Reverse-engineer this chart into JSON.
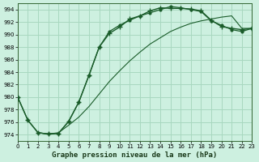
{
  "title": "Graphe pression niveau de la mer (hPa)",
  "background_color": "#cdf0e0",
  "grid_color": "#a8d8c0",
  "line_color": "#1a5c2a",
  "xlim": [
    0,
    23
  ],
  "ylim": [
    973,
    995
  ],
  "yticks": [
    974,
    976,
    978,
    980,
    982,
    984,
    986,
    988,
    990,
    992,
    994
  ],
  "xticks": [
    0,
    1,
    2,
    3,
    4,
    5,
    6,
    7,
    8,
    9,
    10,
    11,
    12,
    13,
    14,
    15,
    16,
    17,
    18,
    19,
    20,
    21,
    22,
    23
  ],
  "series1_x": [
    0,
    1,
    2,
    3,
    4,
    5,
    6,
    7,
    8,
    9,
    10,
    11,
    12,
    13,
    14,
    15,
    16,
    17,
    18,
    19,
    20,
    21,
    22,
    23
  ],
  "series1_y": [
    980.0,
    976.3,
    974.3,
    974.1,
    974.2,
    976.1,
    979.2,
    983.5,
    988.0,
    990.2,
    991.2,
    992.5,
    993.0,
    993.8,
    994.3,
    994.2,
    994.2,
    994.1,
    993.8,
    992.3,
    991.3,
    991.0,
    990.8,
    991.0
  ],
  "series2_x": [
    2,
    3,
    4,
    5,
    6,
    7,
    8,
    9,
    10,
    11,
    12,
    13,
    14,
    15,
    16,
    17,
    18,
    19,
    20,
    21,
    22,
    23
  ],
  "series2_y": [
    974.3,
    974.1,
    974.3,
    975.5,
    976.8,
    978.5,
    980.5,
    982.5,
    984.2,
    985.8,
    987.2,
    988.5,
    989.5,
    990.5,
    991.2,
    991.8,
    992.2,
    992.5,
    992.8,
    993.0,
    991.0,
    991.0
  ],
  "series3_x": [
    0,
    1,
    2,
    3,
    4,
    5,
    6,
    7,
    8,
    9,
    10,
    11,
    12,
    13,
    14,
    15,
    16,
    17,
    18,
    19,
    20,
    21,
    22,
    23
  ],
  "series3_y": [
    980.0,
    976.3,
    974.3,
    974.1,
    974.2,
    976.1,
    979.2,
    983.5,
    988.0,
    990.5,
    991.5,
    992.3,
    993.0,
    993.5,
    994.0,
    994.5,
    994.3,
    994.0,
    993.7,
    992.2,
    991.5,
    990.8,
    990.5,
    991.0
  ]
}
